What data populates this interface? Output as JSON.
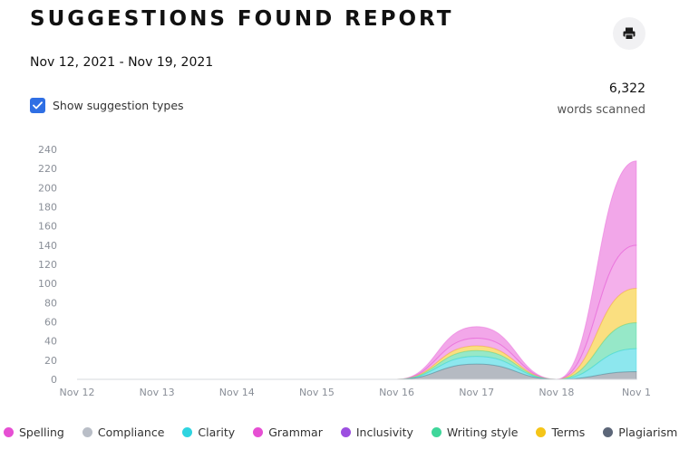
{
  "report": {
    "title": "SUGGESTIONS FOUND REPORT",
    "date_range": "Nov 12, 2021 - Nov 19, 2021",
    "toggle_label": "Show suggestion types",
    "toggle_checked": true,
    "words_count": "6,322",
    "words_label": "words scanned",
    "print_icon": "printer-icon"
  },
  "legend": [
    {
      "label": "Spelling",
      "color": "#e64fd3"
    },
    {
      "label": "Compliance",
      "color": "#b9bec7"
    },
    {
      "label": "Clarity",
      "color": "#2fd4e0"
    },
    {
      "label": "Grammar",
      "color": "#e64fd3"
    },
    {
      "label": "Inclusivity",
      "color": "#9c4fe0"
    },
    {
      "label": "Writing style",
      "color": "#3fd69a"
    },
    {
      "label": "Terms",
      "color": "#f5c518"
    },
    {
      "label": "Plagiarism",
      "color": "#5c6678"
    }
  ],
  "chart_data": {
    "type": "area",
    "stacked": true,
    "categories": [
      "Nov 12",
      "Nov 13",
      "Nov 14",
      "Nov 15",
      "Nov 16",
      "Nov 17",
      "Nov 18",
      "Nov 1"
    ],
    "y_ticks": [
      0,
      20,
      40,
      60,
      80,
      100,
      120,
      140,
      160,
      180,
      200,
      220,
      240
    ],
    "ylim": [
      0,
      240
    ],
    "series": [
      {
        "name": "Plagiarism",
        "color": "#5c6678",
        "opacity": 0.45,
        "values": [
          0,
          0,
          0,
          0,
          0,
          16,
          0,
          8
        ]
      },
      {
        "name": "Clarity",
        "color": "#2fd4e0",
        "opacity": 0.55,
        "values": [
          0,
          0,
          0,
          0,
          0,
          8,
          0,
          24
        ]
      },
      {
        "name": "Writing style",
        "color": "#3fd69a",
        "opacity": 0.55,
        "values": [
          0,
          0,
          0,
          0,
          0,
          6,
          0,
          27
        ]
      },
      {
        "name": "Terms",
        "color": "#f5c518",
        "opacity": 0.55,
        "values": [
          0,
          0,
          0,
          0,
          0,
          5,
          0,
          36
        ]
      },
      {
        "name": "Grammar",
        "color": "#e64fd3",
        "opacity": 0.45,
        "values": [
          0,
          0,
          0,
          0,
          0,
          8,
          0,
          45
        ]
      },
      {
        "name": "Spelling",
        "color": "#e64fd3",
        "opacity": 0.5,
        "values": [
          0,
          0,
          0,
          0,
          0,
          12,
          0,
          88
        ]
      }
    ],
    "grid": false
  }
}
